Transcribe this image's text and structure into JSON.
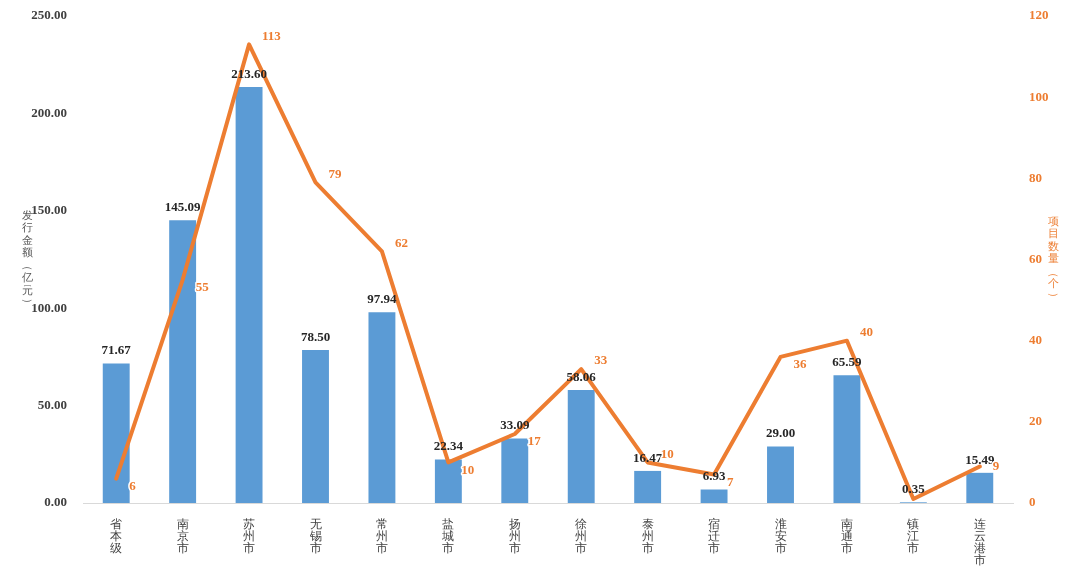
{
  "chart_data": {
    "type": "bar",
    "categories": [
      "省本级",
      "南京市",
      "苏州市",
      "无锡市",
      "常州市",
      "盐城市",
      "扬州市",
      "徐州市",
      "泰州市",
      "宿迁市",
      "淮安市",
      "南通市",
      "镇江市",
      "连云港市"
    ],
    "ylabel": "发行金额（亿元）",
    "y2label": "项目数量（个）",
    "series": [
      {
        "color": "#5b9bd5",
        "values": [
          71.67,
          145.09,
          213.6,
          78.5,
          97.94,
          22.34,
          33.09,
          58.06,
          16.47,
          6.93,
          29.0,
          65.59,
          0.35,
          15.49
        ],
        "value_labels": [
          "71.67",
          "145.09",
          "213.60",
          "78.50",
          "97.94",
          "22.34",
          "33.09",
          "58.06",
          "16.47",
          "6.93",
          "29.00",
          "65.59",
          "0.35",
          "15.49"
        ]
      },
      {
        "type": "line",
        "axis": "y2",
        "color": "#ed7d31",
        "values": [
          6,
          55,
          113,
          79,
          62,
          10,
          17,
          33,
          10,
          7,
          36,
          40,
          1,
          9
        ],
        "value_labels": [
          "6",
          "55",
          "113",
          "79",
          "62",
          "10",
          "17",
          "33",
          "10",
          "7",
          "36",
          "40",
          null,
          "9"
        ]
      }
    ],
    "ylim": [
      0,
      250
    ],
    "yticks": [
      {
        "value": 0,
        "label": "0.00"
      },
      {
        "value": 50,
        "label": "50.00"
      },
      {
        "value": 100,
        "label": "100.00"
      },
      {
        "value": 150,
        "label": "150.00"
      },
      {
        "value": 200,
        "label": "200.00"
      },
      {
        "value": 250,
        "label": "250.00"
      }
    ],
    "y2lim": [
      0,
      120
    ],
    "y2ticks": [
      0,
      20,
      40,
      60,
      80,
      100,
      120
    ],
    "grid": false,
    "legend": false,
    "marker": "none"
  }
}
